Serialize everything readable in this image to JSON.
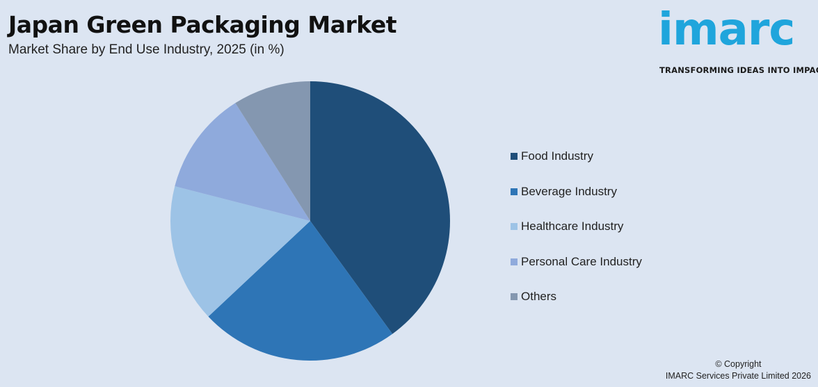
{
  "header": {
    "title": "Japan Green Packaging Market",
    "subtitle": "Market Share by End Use Industry, 2025 (in %)"
  },
  "logo": {
    "word": "imarc",
    "tagline": "TRANSFORMING IDEAS INTO IMPACT",
    "color": "#1fa5dc"
  },
  "chart_data": {
    "type": "pie",
    "title": "Japan Green Packaging Market",
    "subtitle": "Market Share by End Use Industry, 2025 (in %)",
    "categories": [
      "Food Industry",
      "Beverage Industry",
      "Healthcare Industry",
      "Personal Care Industry",
      "Others"
    ],
    "values": [
      40,
      23,
      16,
      12,
      9
    ],
    "colors": [
      "#1f4e79",
      "#2e75b6",
      "#9dc3e6",
      "#8faadc",
      "#8497b0"
    ],
    "start_angle": "12 o'clock",
    "direction": "clockwise",
    "legend_position": "right"
  },
  "footer": {
    "copyright": "© Copyright",
    "company": "IMARC Services Private Limited 2026"
  }
}
